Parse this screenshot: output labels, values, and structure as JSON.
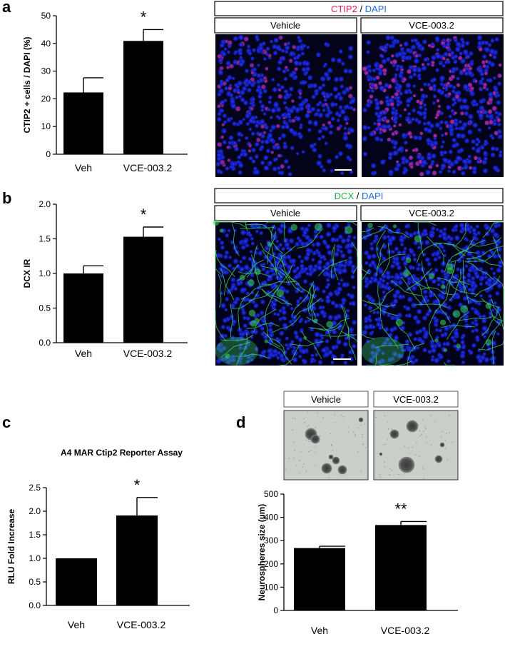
{
  "panel_labels": {
    "a": "a",
    "b": "b",
    "c": "c",
    "d": "d"
  },
  "micro": {
    "a": {
      "stain": "CTIP2",
      "sep": " / ",
      "dapi": "DAPI",
      "vehicle": "Vehicle",
      "treated": "VCE-003.2"
    },
    "b": {
      "stain": "DCX",
      "sep": " / ",
      "dapi": "DAPI",
      "vehicle": "Vehicle",
      "treated": "VCE-003.2"
    },
    "d": {
      "vehicle": "Vehicle",
      "treated": "VCE-003.2"
    }
  },
  "colors": {
    "ctip2": "#e0185a",
    "dapi": "#1f6fd6",
    "dcx": "#22b24c",
    "bar": "#000000"
  },
  "chart_data": [
    {
      "id": "a",
      "type": "bar",
      "categories": [
        "Veh",
        "VCE-003.2"
      ],
      "values": [
        22.3,
        40.9
      ],
      "errors": [
        5.3,
        4.1
      ],
      "ylabel": "CTIP2 + cells / DAPI (%)",
      "ylim": [
        0,
        50
      ],
      "yticks": [
        "0",
        "10",
        "20",
        "30",
        "40",
        "50"
      ],
      "significance": [
        {
          "index": 1,
          "label": "*"
        }
      ],
      "title": ""
    },
    {
      "id": "b",
      "type": "bar",
      "categories": [
        "Veh",
        "VCE-003.2"
      ],
      "values": [
        1.0,
        1.53
      ],
      "errors": [
        0.11,
        0.14
      ],
      "ylabel": "DCX IR",
      "ylim": [
        0,
        2.0
      ],
      "yticks": [
        "0.0",
        "0.5",
        "1.0",
        "1.5",
        "2.0"
      ],
      "significance": [
        {
          "index": 1,
          "label": "*"
        }
      ],
      "title": ""
    },
    {
      "id": "c",
      "type": "bar",
      "categories": [
        "Veh",
        "VCE-003.2"
      ],
      "values": [
        1.0,
        1.91
      ],
      "errors": [
        0.0,
        0.38
      ],
      "ylabel": "RLU Fold Increase",
      "ylim": [
        0,
        2.5
      ],
      "yticks": [
        "0.0",
        "0.5",
        "1.0",
        "1.5",
        "2.0",
        "2.5"
      ],
      "significance": [
        {
          "index": 1,
          "label": "*"
        }
      ],
      "title": "A4 MAR Ctip2 Reporter Assay"
    },
    {
      "id": "d",
      "type": "bar",
      "categories": [
        "Veh",
        "VCE-003.2"
      ],
      "values": [
        268,
        367
      ],
      "errors": [
        8,
        15
      ],
      "ylabel": "Neurospheres size (µm)",
      "ylim": [
        0,
        500
      ],
      "yticks": [
        "0",
        "100",
        "200",
        "300",
        "400",
        "500"
      ],
      "significance": [
        {
          "index": 1,
          "label": "**"
        }
      ],
      "title": ""
    }
  ]
}
